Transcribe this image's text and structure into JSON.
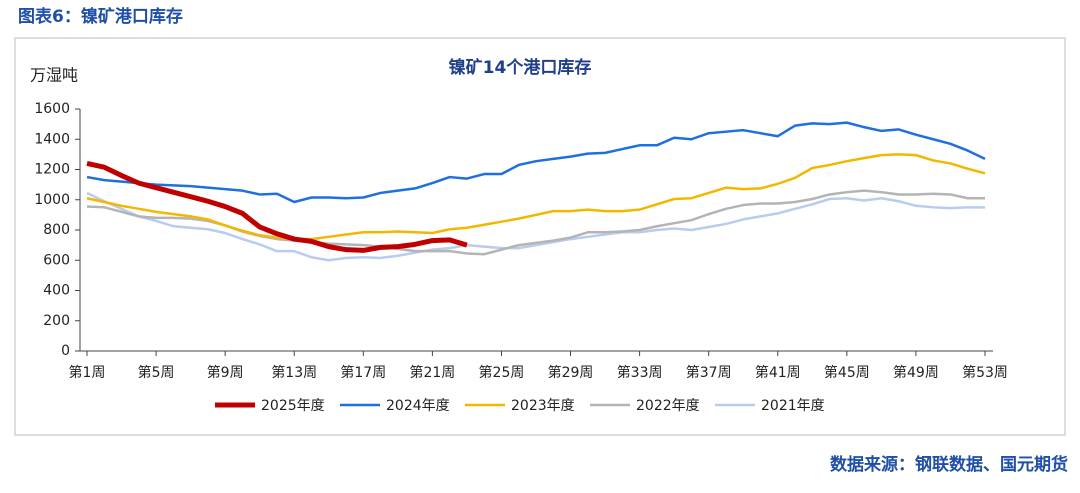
{
  "header": "图表6：镍矿港口库存",
  "source": "数据来源：钢联数据、国元期货",
  "chart_data": {
    "type": "line",
    "title": "镍矿14个港口库存",
    "y_label": "万湿吨",
    "categories": [
      "第1周",
      null,
      null,
      null,
      "第5周",
      null,
      null,
      null,
      "第9周",
      null,
      null,
      null,
      "第13周",
      null,
      null,
      null,
      "第17周",
      null,
      null,
      null,
      "第21周",
      null,
      null,
      null,
      "第25周",
      null,
      null,
      null,
      "第29周",
      null,
      null,
      null,
      "第33周",
      null,
      null,
      null,
      "第37周",
      null,
      null,
      null,
      "第41周",
      null,
      null,
      null,
      "第45周",
      null,
      null,
      null,
      "第49周",
      null,
      null,
      null,
      "第53周"
    ],
    "ylim": [
      0,
      1600
    ],
    "yticks": [
      0,
      200,
      400,
      600,
      800,
      1000,
      1200,
      1400,
      1600
    ],
    "series": [
      {
        "name": "2025年度",
        "color": "#c00000",
        "width": 5,
        "values": [
          1240,
          1215,
          1160,
          1110,
          1080,
          1050,
          1020,
          990,
          955,
          910,
          820,
          775,
          740,
          725,
          690,
          670,
          665,
          685,
          690,
          705,
          730,
          735,
          700,
          null,
          null,
          null,
          null,
          null,
          null,
          null,
          null,
          null,
          null,
          null,
          null,
          null,
          null,
          null,
          null,
          null,
          null,
          null,
          null,
          null,
          null,
          null,
          null,
          null,
          null,
          null,
          null,
          null,
          null
        ]
      },
      {
        "name": "2024年度",
        "color": "#1f6fe0",
        "width": 2.5,
        "values": [
          1150,
          1130,
          1120,
          1110,
          1100,
          1095,
          1090,
          1080,
          1070,
          1060,
          1035,
          1040,
          985,
          1015,
          1015,
          1010,
          1015,
          1045,
          1060,
          1075,
          1110,
          1150,
          1140,
          1170,
          1170,
          1230,
          1255,
          1270,
          1285,
          1305,
          1310,
          1335,
          1360,
          1360,
          1410,
          1400,
          1440,
          1450,
          1460,
          1440,
          1420,
          1490,
          1505,
          1500,
          1510,
          1480,
          1455,
          1465,
          1430,
          1400,
          1370,
          1325,
          1270
        ]
      },
      {
        "name": "2023年度",
        "color": "#f2b800",
        "width": 2.5,
        "values": [
          1010,
          985,
          960,
          940,
          920,
          905,
          890,
          870,
          830,
          795,
          765,
          750,
          740,
          740,
          755,
          770,
          785,
          785,
          790,
          785,
          780,
          805,
          815,
          835,
          855,
          875,
          900,
          925,
          925,
          935,
          925,
          925,
          935,
          970,
          1005,
          1010,
          1045,
          1080,
          1070,
          1075,
          1105,
          1145,
          1210,
          1230,
          1255,
          1275,
          1295,
          1300,
          1295,
          1260,
          1240,
          1205,
          1175
        ]
      },
      {
        "name": "2022年度",
        "color": "#b4b4b4",
        "width": 2.5,
        "values": [
          955,
          950,
          920,
          890,
          880,
          880,
          875,
          860,
          830,
          790,
          760,
          740,
          730,
          720,
          710,
          705,
          700,
          690,
          675,
          660,
          660,
          660,
          645,
          640,
          670,
          700,
          715,
          730,
          750,
          785,
          785,
          790,
          800,
          825,
          845,
          865,
          905,
          940,
          965,
          975,
          975,
          985,
          1005,
          1035,
          1050,
          1060,
          1050,
          1035,
          1035,
          1040,
          1035,
          1010,
          1010
        ]
      },
      {
        "name": "2021年度",
        "color": "#b8ccf0",
        "width": 2.5,
        "values": [
          1045,
          990,
          940,
          890,
          860,
          825,
          815,
          805,
          780,
          740,
          705,
          660,
          660,
          620,
          600,
          615,
          620,
          615,
          630,
          650,
          670,
          680,
          700,
          690,
          680,
          680,
          700,
          720,
          740,
          755,
          770,
          785,
          785,
          800,
          810,
          800,
          820,
          840,
          870,
          890,
          910,
          940,
          970,
          1005,
          1010,
          995,
          1010,
          990,
          960,
          950,
          945,
          950,
          950
        ]
      }
    ]
  }
}
